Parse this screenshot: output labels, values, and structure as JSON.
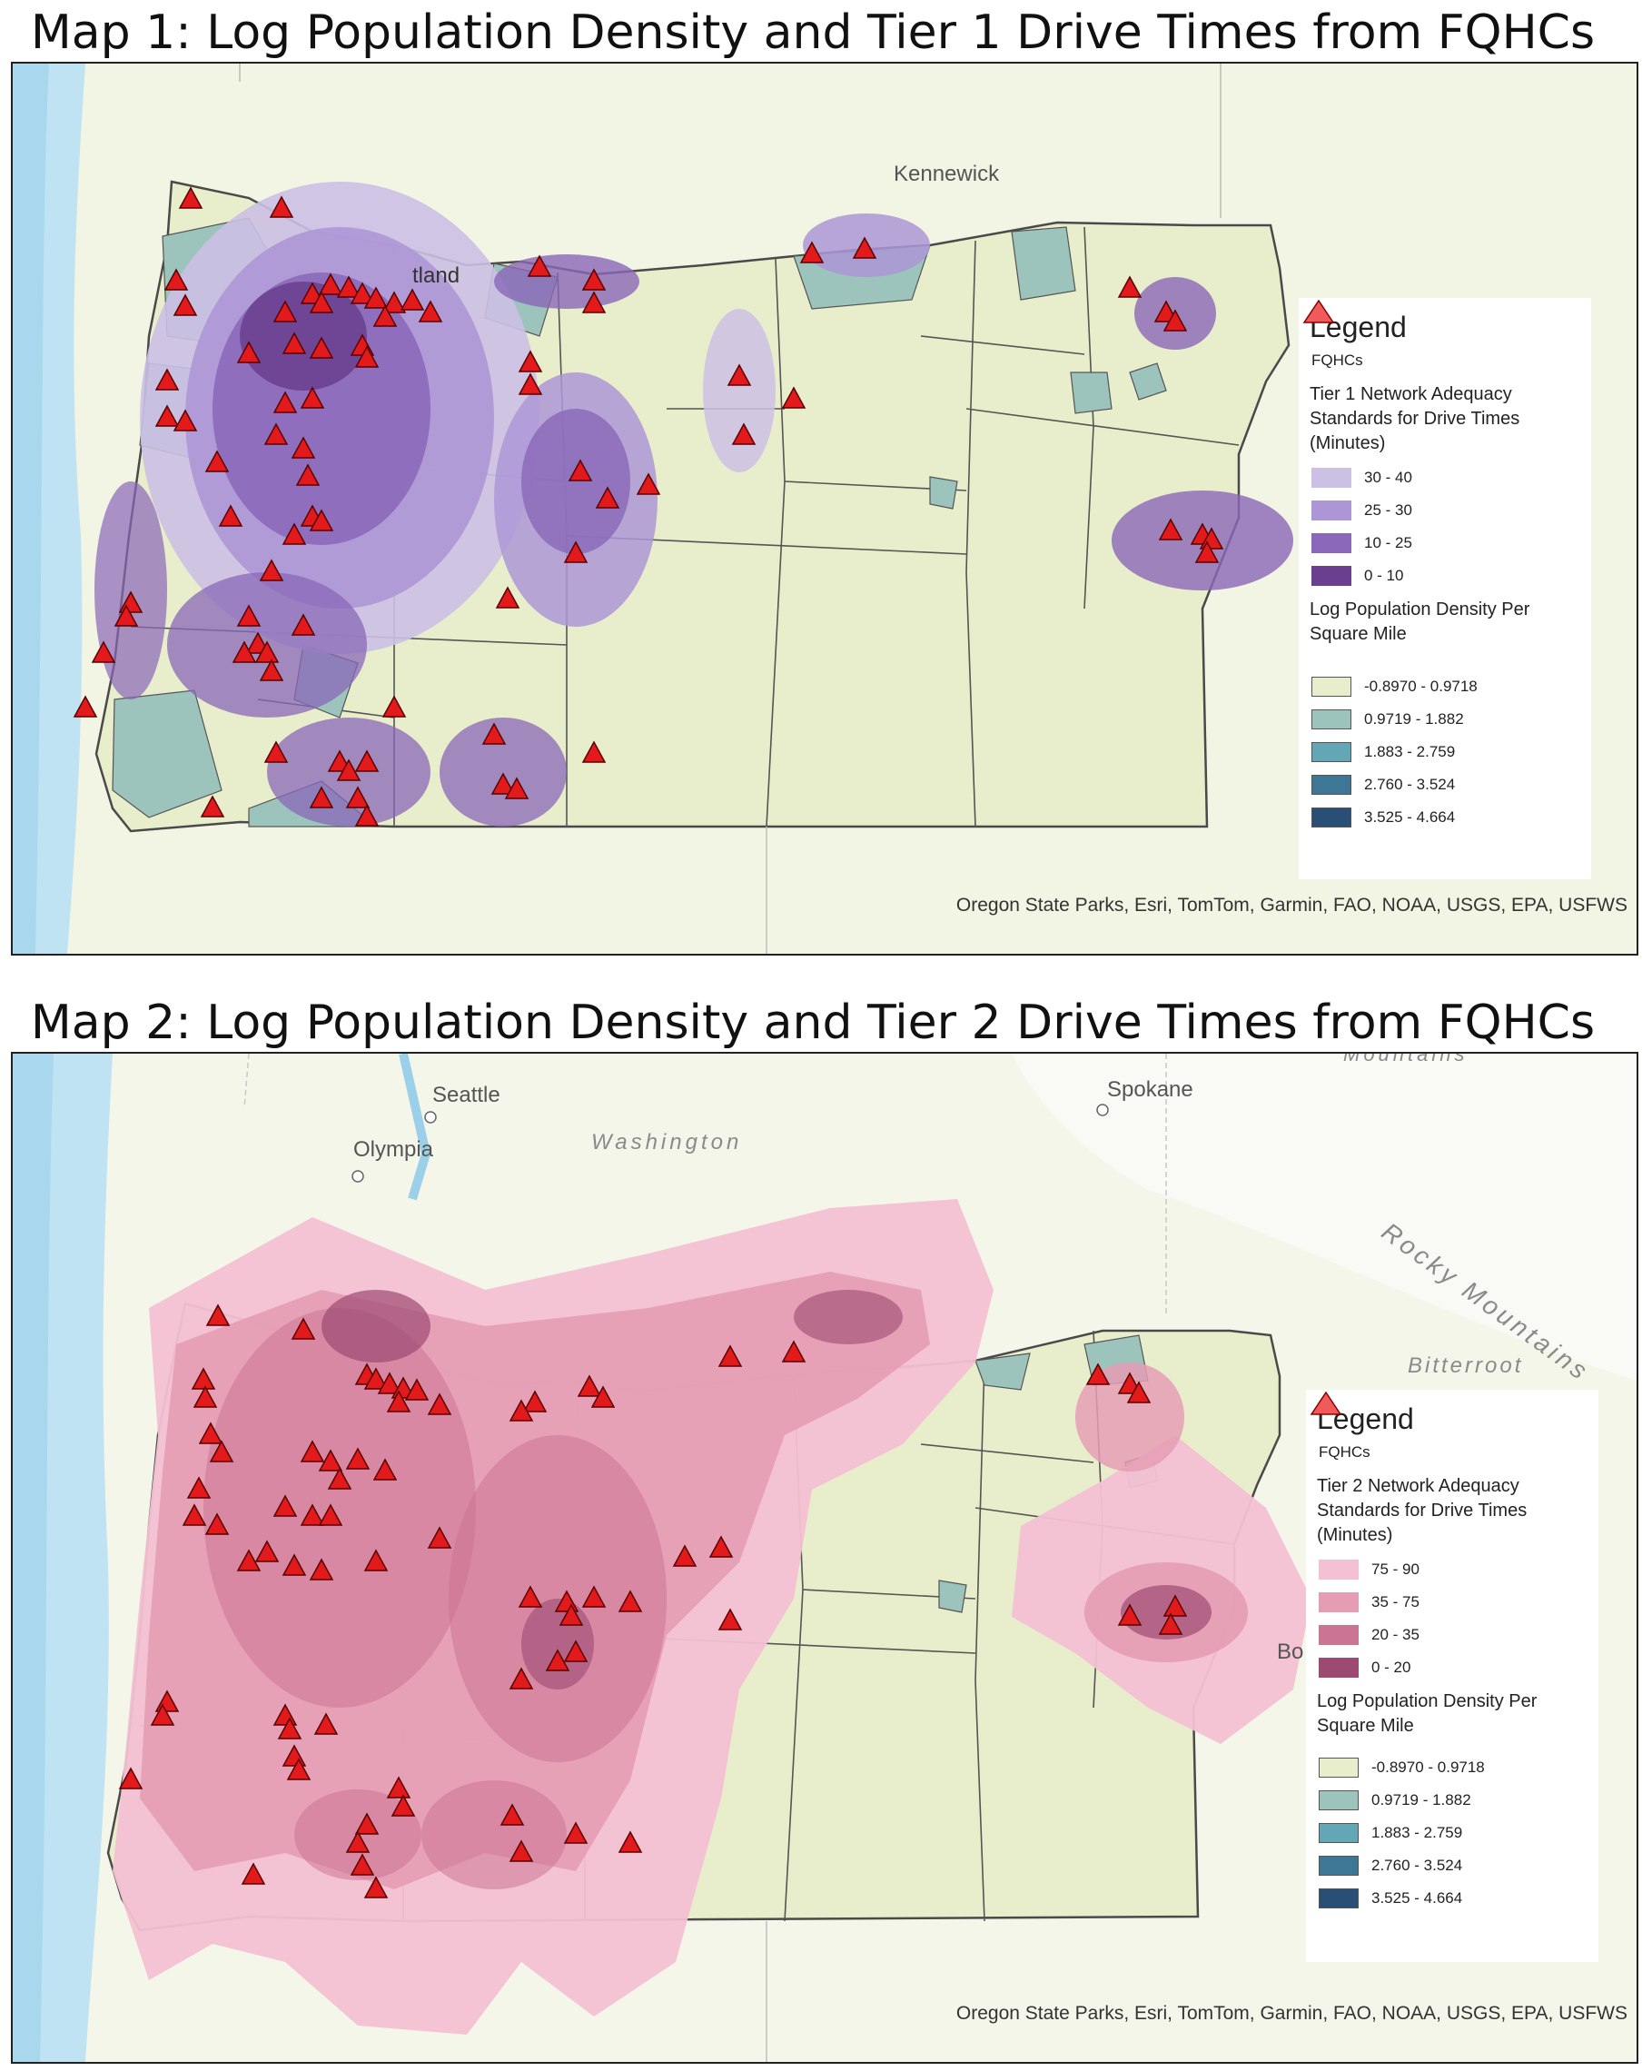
{
  "maps": [
    {
      "title": "Map 1: Log Population Density and Tier 1 Drive Times from FQHCs",
      "places": [
        {
          "name": "Kennewick",
          "style": "normal"
        },
        {
          "name": "tland",
          "style": "normal"
        }
      ],
      "legend": {
        "title": "Legend",
        "fqhc_label": "FQHCs",
        "drive_heading": "Tier 1 Network Adequacy Standards for Drive Times (Minutes)",
        "drive_classes": [
          {
            "label": "30 - 40",
            "color": "#ccc0e4"
          },
          {
            "label": "25 - 30",
            "color": "#ad96d6"
          },
          {
            "label": "10 - 25",
            "color": "#8a67b8"
          },
          {
            "label": "0 - 10",
            "color": "#6a3f8f"
          }
        ],
        "density_heading": "Log Population Density Per Square Mile",
        "density_classes": [
          {
            "label": "-0.8970 - 0.9718",
            "color": "#e8edcc"
          },
          {
            "label": "0.9719 - 1.882",
            "color": "#9cc3bc"
          },
          {
            "label": "1.883 - 2.759",
            "color": "#63a6b6"
          },
          {
            "label": "2.760 - 3.524",
            "color": "#3d7795"
          },
          {
            "label": "3.525 - 4.664",
            "color": "#2a4f77"
          }
        ]
      },
      "credits": "Oregon State Parks, Esri, TomTom, Garmin, FAO, NOAA, USGS, EPA, USFWS"
    },
    {
      "title": "Map 2: Log Population Density and Tier 2 Drive Times from FQHCs",
      "places": [
        {
          "name": "Seattle",
          "style": "normal"
        },
        {
          "name": "Spokane",
          "style": "normal"
        },
        {
          "name": "Washington",
          "style": "italic"
        },
        {
          "name": "Olympia",
          "style": "normal"
        },
        {
          "name": "Rocky Mountains",
          "style": "italic"
        },
        {
          "name": "Bitterroot",
          "style": "italic"
        },
        {
          "name": "Mountains",
          "style": "italic"
        },
        {
          "name": "Bo",
          "style": "normal"
        }
      ],
      "legend": {
        "title": "Legend",
        "fqhc_label": "FQHCs",
        "drive_heading": "Tier 2 Network Adequacy Standards for Drive Times (Minutes)",
        "drive_classes": [
          {
            "label": "75 - 90",
            "color": "#f3c1d3"
          },
          {
            "label": "35 - 75",
            "color": "#e59db4"
          },
          {
            "label": "20 - 35",
            "color": "#cc7494"
          },
          {
            "label": "0 - 20",
            "color": "#9c4a72"
          }
        ],
        "density_heading": "Log Population Density Per Square Mile",
        "density_classes": [
          {
            "label": "-0.8970 - 0.9718",
            "color": "#e8edcc"
          },
          {
            "label": "0.9719 - 1.882",
            "color": "#9cc3bc"
          },
          {
            "label": "1.883 - 2.759",
            "color": "#63a6b6"
          },
          {
            "label": "2.760 - 3.524",
            "color": "#3d7795"
          },
          {
            "label": "3.525 - 4.664",
            "color": "#2a4f77"
          }
        ]
      },
      "credits": "Oregon State Parks, Esri, TomTom, Garmin, FAO, NOAA, USGS, EPA, USFWS"
    }
  ],
  "colors": {
    "ocean": "#bfe3f3",
    "land_outside": "#f2f4e4",
    "state_outline": "#4a4a4a",
    "fqhc_marker": "#e31a1c"
  }
}
